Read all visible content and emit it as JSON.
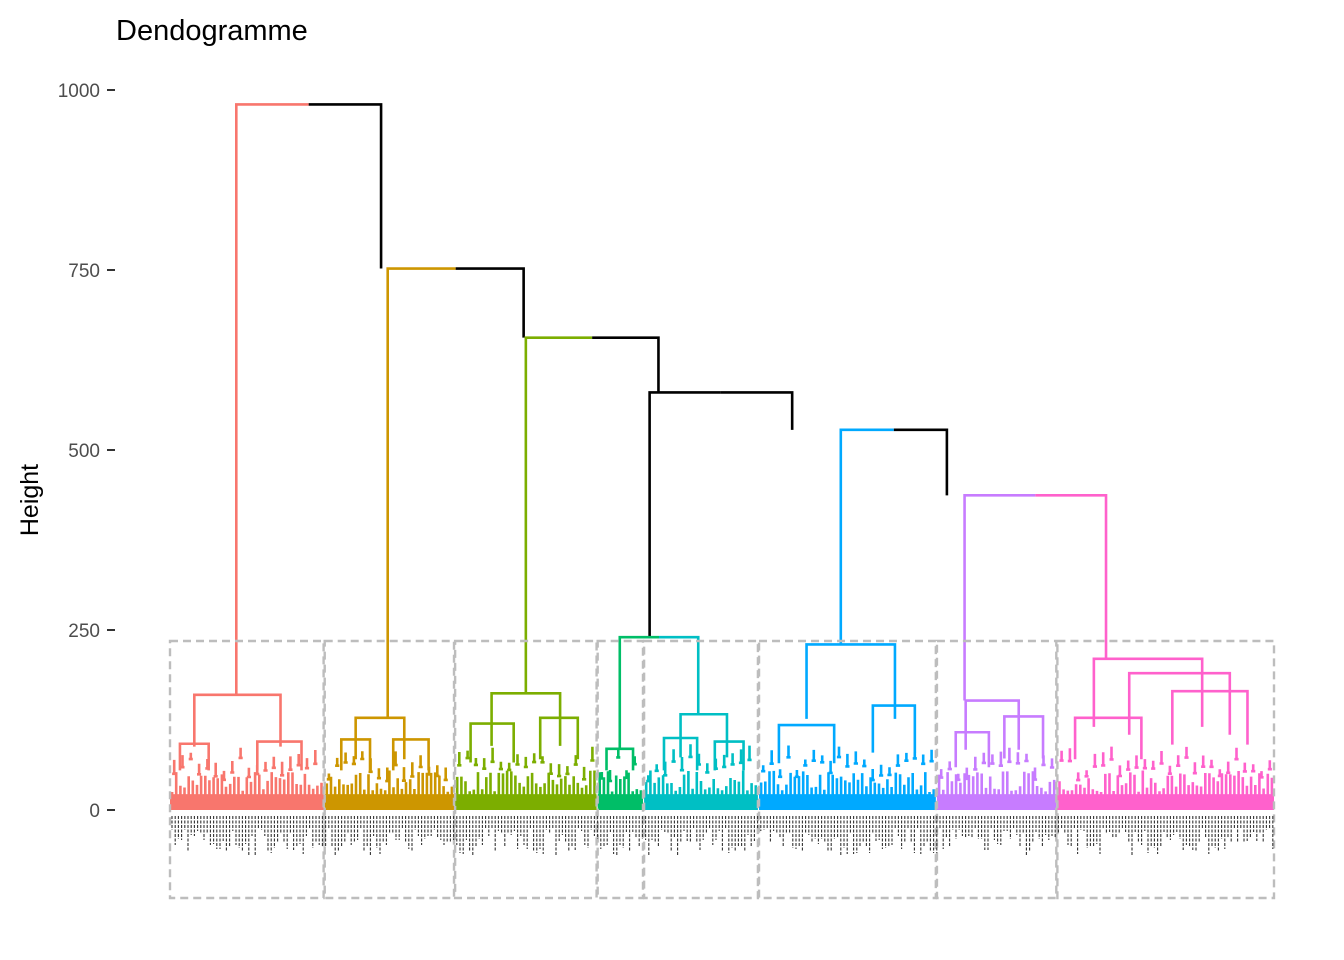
{
  "chart_data": {
    "type": "dendrogram",
    "title": "Dendogramme",
    "xlabel": "",
    "ylabel": "Height",
    "ylim": [
      -250,
      1050
    ],
    "yticks": [
      0,
      250,
      500,
      750,
      1000
    ],
    "grid": false,
    "legend": "none",
    "leaf_span": [
      1,
      1000
    ],
    "clusters": [
      {
        "color": "#F8766D",
        "range": [
          1,
          140
        ],
        "height": 160
      },
      {
        "color": "#CD9600",
        "range": [
          141,
          258
        ],
        "height": 128
      },
      {
        "color": "#7CAE00",
        "range": [
          259,
          387
        ],
        "height": 162
      },
      {
        "color": "#00BE67",
        "range": [
          388,
          429
        ],
        "height": 85
      },
      {
        "color": "#00BFC4",
        "range": [
          430,
          533
        ],
        "height": 133
      },
      {
        "color": "#00A9FF",
        "range": [
          534,
          694
        ],
        "height": 230
      },
      {
        "color": "#C77CFF",
        "range": [
          695,
          803
        ],
        "height": 152
      },
      {
        "color": "#FF61CC",
        "range": [
          804,
          1000
        ],
        "height": 210
      }
    ],
    "cluster_boxes": [
      [
        1,
        140
      ],
      [
        141,
        258
      ],
      [
        259,
        387
      ],
      [
        388,
        429
      ],
      [
        430,
        533
      ],
      [
        534,
        694
      ],
      [
        695,
        803
      ],
      [
        804,
        1000
      ]
    ],
    "top_merges": [
      {
        "x_left": 61,
        "x_right": 192,
        "height": 980,
        "left_color": "#F8766D",
        "right_color": "#000000"
      },
      {
        "x_left": 198,
        "x_right": 321,
        "height": 752,
        "left_color": "#CD9600",
        "right_color": "#000000"
      },
      {
        "x_left": 323,
        "x_right": 443,
        "height": 656,
        "left_color": "#7CAE00",
        "right_color": "#000000"
      },
      {
        "x_left": 435,
        "x_right": 564,
        "height": 580,
        "left_color": "#000000",
        "right_color": "#000000"
      },
      {
        "x_left": 608,
        "x_right": 704,
        "height": 528,
        "left_color": "#00A9FF",
        "right_color": "#000000"
      },
      {
        "x_left": 720,
        "x_right": 848,
        "height": 437,
        "left_color": "#C77CFF",
        "right_color": "#FF61CC"
      },
      {
        "x_left": 408,
        "x_right": 479,
        "height": 240,
        "left_color": "#00BE67",
        "right_color": "#00BFC4"
      }
    ],
    "mid_merges": [
      {
        "color": "#F8766D",
        "merges": [
          [
            23,
            101,
            160
          ],
          [
            10,
            36,
            92
          ],
          [
            80,
            120,
            95
          ]
        ]
      },
      {
        "color": "#CD9600",
        "merges": [
          [
            169,
            213,
            128
          ],
          [
            156,
            182,
            98
          ],
          [
            203,
            235,
            98
          ]
        ]
      },
      {
        "color": "#7CAE00",
        "merges": [
          [
            292,
            354,
            162
          ],
          [
            273,
            312,
            120
          ],
          [
            336,
            370,
            128
          ]
        ]
      },
      {
        "color": "#00BE67",
        "merges": [
          [
            396,
            420,
            85
          ]
        ]
      },
      {
        "color": "#00BFC4",
        "merges": [
          [
            463,
            505,
            133
          ],
          [
            448,
            478,
            100
          ],
          [
            494,
            520,
            95
          ]
        ]
      },
      {
        "color": "#00A9FF",
        "merges": [
          [
            577,
            657,
            230
          ],
          [
            552,
            602,
            118
          ],
          [
            637,
            675,
            145
          ]
        ]
      },
      {
        "color": "#C77CFF",
        "merges": [
          [
            721,
            769,
            152
          ],
          [
            712,
            742,
            108
          ],
          [
            756,
            791,
            130
          ]
        ]
      },
      {
        "color": "#FF61CC",
        "merges": [
          [
            837,
            935,
            210
          ],
          [
            820,
            880,
            128
          ],
          [
            869,
            960,
            190
          ],
          [
            908,
            976,
            165
          ]
        ]
      }
    ]
  }
}
